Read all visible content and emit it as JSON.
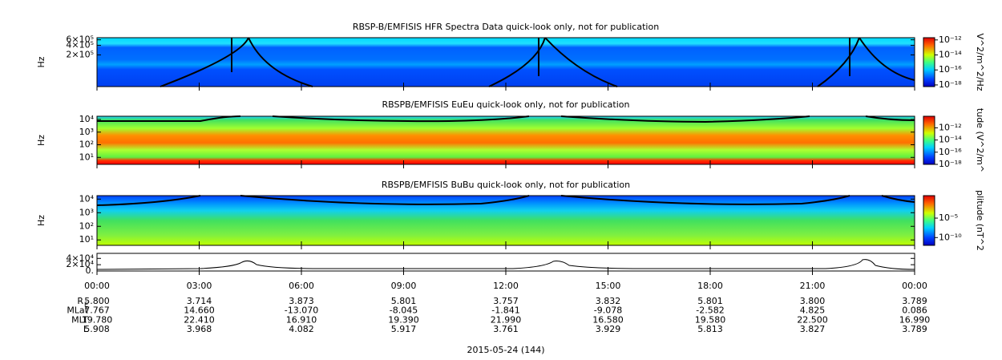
{
  "chart_data": [
    {
      "type": "spectrogram",
      "title": "RBSP-B/EMFISIS  HFR Spectra Data quick-look only, not for publication",
      "y_label": "Hz",
      "log_y": true,
      "ylim": [
        20000,
        700000
      ],
      "yticks": [
        {
          "value": 200000,
          "label": "2×10⁵"
        },
        {
          "value": 400000,
          "label": "4×10⁵"
        },
        {
          "value": 600000,
          "label": "6×10⁵"
        }
      ],
      "colorbar_label": "V^2/m^2/Hz",
      "clim": [
        6e-19,
        2e-12
      ],
      "colorbar_ticks": [
        {
          "value": 1e-18,
          "label": "10⁻¹⁸"
        },
        {
          "value": 1e-16,
          "label": "10⁻¹⁶"
        },
        {
          "value": 1e-14,
          "label": "10⁻¹⁴"
        },
        {
          "value": 1e-12,
          "label": "10⁻¹²"
        }
      ]
    },
    {
      "type": "spectrogram",
      "title": "RBSPB/EMFISIS  EuEu quick-look only, not for publication",
      "y_label": "Hz",
      "log_y": true,
      "ylim": [
        2.8,
        18000
      ],
      "yticks": [
        {
          "value": 10,
          "label": "10¹"
        },
        {
          "value": 100,
          "label": "10²"
        },
        {
          "value": 1000,
          "label": "10³"
        },
        {
          "value": 10000,
          "label": "10⁴"
        }
      ],
      "colorbar_label": "tude (V^2/m^",
      "clim": [
        1e-18,
        8e-11
      ],
      "colorbar_ticks": [
        {
          "value": 1e-18,
          "label": "10⁻¹⁸"
        },
        {
          "value": 1e-16,
          "label": "10⁻¹⁶"
        },
        {
          "value": 1e-14,
          "label": "10⁻¹⁴"
        },
        {
          "value": 1e-12,
          "label": "10⁻¹²"
        }
      ]
    },
    {
      "type": "spectrogram",
      "title": "RBSPB/EMFISIS  BuBu quick-look only, not for publication",
      "y_label": "Hz",
      "log_y": true,
      "ylim": [
        4,
        18000
      ],
      "yticks": [
        {
          "value": 10,
          "label": "10¹"
        },
        {
          "value": 100,
          "label": "10²"
        },
        {
          "value": 1000,
          "label": "10³"
        },
        {
          "value": 10000,
          "label": "10⁴"
        }
      ],
      "colorbar_label": "plitude (nT^2",
      "clim": [
        1e-12,
        6
      ],
      "colorbar_ticks": [
        {
          "value": 1e-10,
          "label": "10⁻¹⁰"
        },
        {
          "value": 1e-05,
          "label": "10⁻⁵"
        }
      ]
    },
    {
      "type": "trace",
      "ylim": [
        0,
        56000
      ],
      "yticks": [
        {
          "value": 0,
          "label": "0."
        },
        {
          "value": 20000,
          "label": "2×10⁴"
        },
        {
          "value": 40000,
          "label": "4×10⁴"
        }
      ],
      "xlim": [
        0,
        24
      ],
      "xticks": [
        {
          "value": 0,
          "label": "00:00"
        },
        {
          "value": 3,
          "label": "03:00"
        },
        {
          "value": 6,
          "label": "06:00"
        },
        {
          "value": 9,
          "label": "09:00"
        },
        {
          "value": 12,
          "label": "12:00"
        },
        {
          "value": 15,
          "label": "15:00"
        },
        {
          "value": 18,
          "label": "18:00"
        },
        {
          "value": 21,
          "label": "21:00"
        },
        {
          "value": 24,
          "label": "00:00"
        }
      ],
      "ephemeris": [
        {
          "label": "R",
          "label_sub": "E",
          "values": [
            "5.800",
            "3.714",
            "3.873",
            "5.801",
            "3.757",
            "3.832",
            "5.801",
            "3.800",
            "3.789"
          ]
        },
        {
          "label": "MLat",
          "values": [
            "7.767",
            "14.660",
            "-13.070",
            "-8.045",
            "-1.841",
            "-9.078",
            "-2.582",
            "4.825",
            "0.086"
          ]
        },
        {
          "label": "MLT",
          "values": [
            "19.780",
            "22.410",
            "16.910",
            "19.390",
            "21.990",
            "16.580",
            "19.580",
            "22.500",
            "16.990"
          ]
        },
        {
          "label": "L",
          "values": [
            "5.908",
            "3.968",
            "4.082",
            "5.917",
            "3.761",
            "3.929",
            "5.813",
            "3.827",
            "3.789"
          ]
        }
      ],
      "date_label": "2015-05-24 (144)"
    }
  ]
}
